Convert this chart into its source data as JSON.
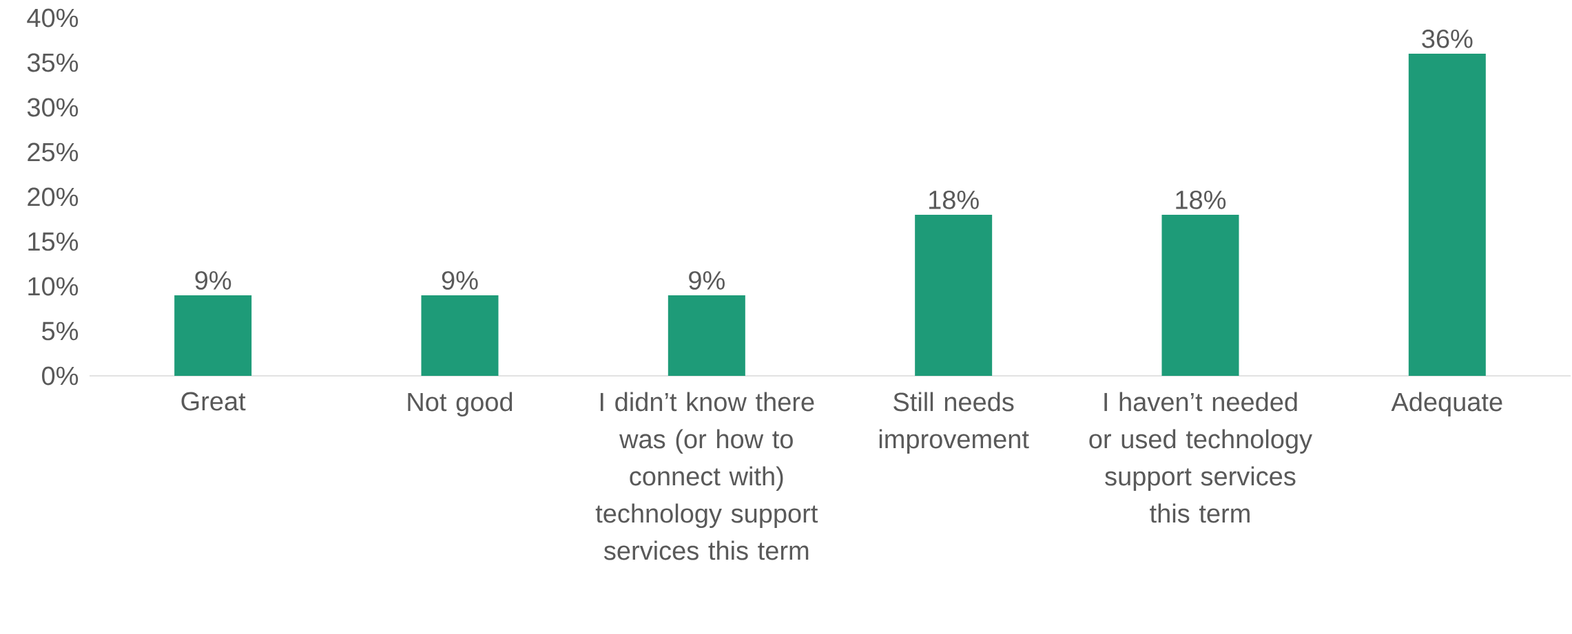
{
  "chart_data": {
    "type": "bar",
    "categories": [
      "Great",
      "Not good",
      "I didn’t know there was (or how to connect with) technology support services this term",
      "Still needs improvement",
      "I haven’t needed or used technology support services this term",
      "Adequate"
    ],
    "values": [
      9,
      9,
      9,
      18,
      18,
      36
    ],
    "value_labels": [
      "9%",
      "9%",
      "9%",
      "18%",
      "18%",
      "36%"
    ],
    "color": "#1e9b78",
    "ylim": [
      0,
      40
    ],
    "yticks": [
      {
        "value": 0,
        "label": "0%"
      },
      {
        "value": 5,
        "label": "5%"
      },
      {
        "value": 10,
        "label": "10%"
      },
      {
        "value": 15,
        "label": "15%"
      },
      {
        "value": 20,
        "label": "20%"
      },
      {
        "value": 25,
        "label": "25%"
      },
      {
        "value": 30,
        "label": "30%"
      },
      {
        "value": 35,
        "label": "35%"
      },
      {
        "value": 40,
        "label": "40%"
      }
    ],
    "grid": false
  }
}
